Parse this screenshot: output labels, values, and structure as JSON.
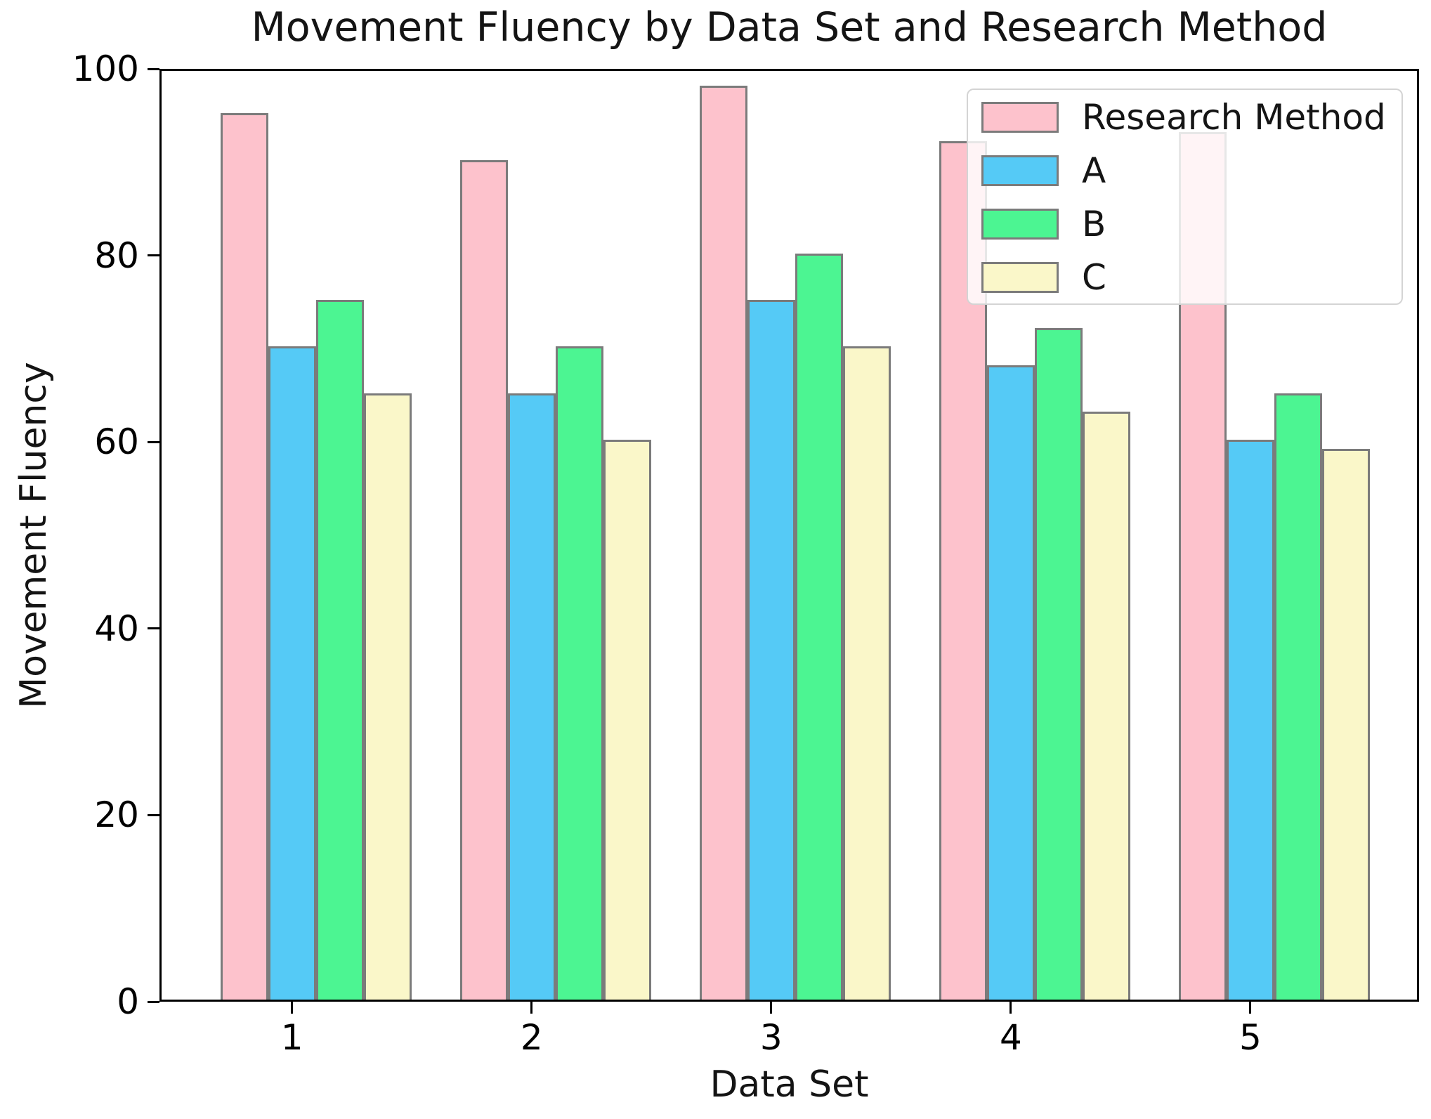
{
  "chart_data": {
    "type": "bar",
    "title": "Movement Fluency by Data Set and Research Method",
    "xlabel": "Data Set",
    "ylabel": "Movement Fluency",
    "categories": [
      "1",
      "2",
      "3",
      "4",
      "5"
    ],
    "series": [
      {
        "name": "Research Method",
        "color": "#FDC2CC",
        "values": [
          95,
          90,
          98,
          92,
          93
        ]
      },
      {
        "name": "A",
        "color": "#55CAF6",
        "values": [
          70,
          65,
          75,
          68,
          60
        ]
      },
      {
        "name": "B",
        "color": "#4CF592",
        "values": [
          75,
          70,
          80,
          72,
          65
        ]
      },
      {
        "name": "C",
        "color": "#FAF7C9",
        "values": [
          65,
          60,
          70,
          63,
          59
        ]
      }
    ],
    "ylim": [
      0,
      100
    ],
    "yticks": [
      0,
      20,
      40,
      60,
      80,
      100
    ],
    "bar_edge_color": "#7b7b7b",
    "legend_position": "upper right",
    "grid": false
  }
}
